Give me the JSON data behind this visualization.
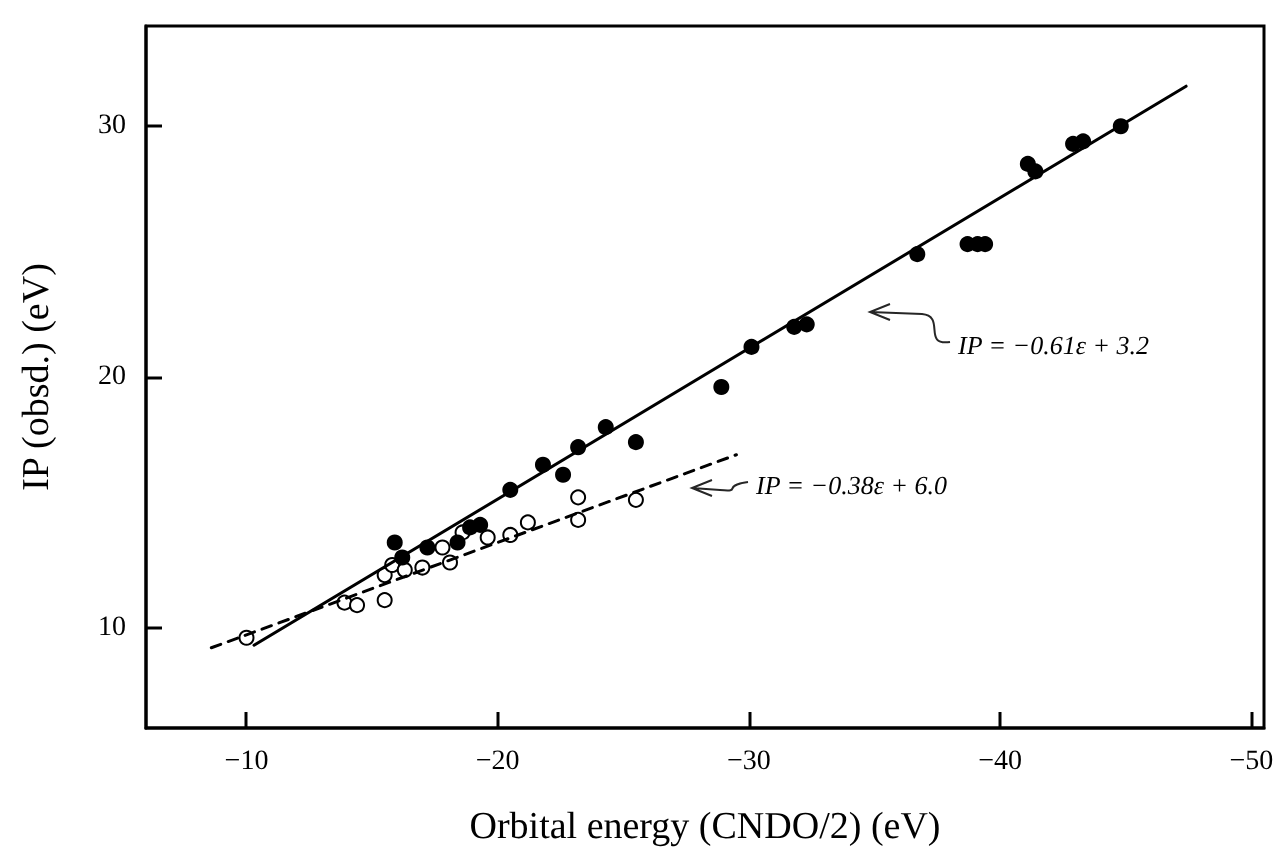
{
  "chart_data": {
    "type": "scatter",
    "xlabel": "Orbital energy (CNDO/2) (eV)",
    "ylabel": "IP (obsd.) (eV)",
    "xlim": [
      -6,
      -50.5
    ],
    "xticks": [
      -10,
      -20,
      -30,
      -40,
      -50
    ],
    "ylim": [
      6,
      34
    ],
    "yticks": [
      10,
      20,
      30
    ],
    "grid": false,
    "marker": "circle",
    "series": [
      {
        "color": "#000000",
        "x": [
          -15.9,
          -16.2,
          -17.2,
          -18.4,
          -18.9,
          -19.3,
          -20.5,
          -21.8,
          -22.6,
          -23.2,
          -24.3,
          -25.5,
          -28.9,
          -30.1,
          -31.8,
          -32.3,
          -36.7,
          -38.7,
          -39.1,
          -39.4,
          -41.1,
          -41.4,
          -42.9,
          -43.3,
          -44.8
        ],
        "values": [
          13.4,
          12.8,
          13.2,
          13.4,
          14.0,
          14.1,
          15.5,
          16.5,
          16.1,
          17.2,
          18.0,
          17.4,
          19.6,
          21.2,
          22.0,
          22.1,
          24.9,
          25.3,
          25.3,
          25.3,
          28.5,
          28.2,
          29.3,
          29.4,
          30.0
        ]
      },
      {
        "color": "#ffffff",
        "x": [
          -10.0,
          -13.9,
          -14.4,
          -15.5,
          -15.5,
          -15.8,
          -16.3,
          -17.0,
          -17.8,
          -18.1,
          -18.6,
          -19.6,
          -20.5,
          -21.2,
          -23.2,
          -23.2,
          -25.5
        ],
        "values": [
          9.6,
          11.0,
          10.9,
          11.1,
          12.1,
          12.5,
          12.3,
          12.4,
          13.2,
          12.6,
          13.8,
          13.6,
          13.7,
          14.2,
          15.2,
          14.3,
          15.1
        ]
      },
      {
        "type": "line",
        "color": "#000000",
        "line_style": "solid",
        "marker": "none",
        "x": [
          -10.3,
          -47.4
        ],
        "values": [
          9.3,
          31.6
        ]
      },
      {
        "type": "line",
        "color": "#000000",
        "line_style": "dashed",
        "marker": "none",
        "x": [
          -8.6,
          -29.5
        ],
        "values": [
          9.2,
          16.9
        ]
      }
    ],
    "annotations": [
      "IP = −0.61ε + 3.2",
      "IP = −0.38ε + 6.0"
    ]
  }
}
